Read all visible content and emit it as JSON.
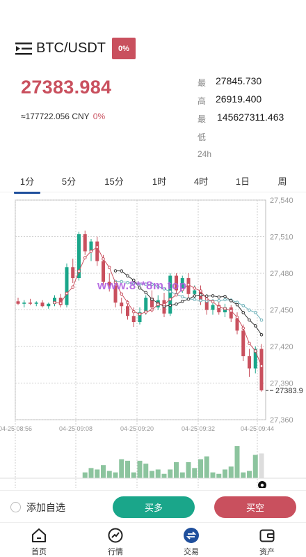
{
  "header": {
    "pair": "BTC/USDT",
    "change_badge": "0%"
  },
  "ticker": {
    "last_price": "27383.984",
    "cny_value": "≈177722.056 CNY",
    "cny_change": "0%",
    "high_label": "最高",
    "high_value": "27845.730",
    "low_label": "最低",
    "low_value": "26919.400",
    "vol_label": "24h",
    "vol_value": "145627311.463"
  },
  "period_tabs": [
    "1分",
    "5分",
    "15分",
    "1时",
    "4时",
    "1日",
    "周"
  ],
  "active_tab": 0,
  "watermark": "www.8**8m.top",
  "chart_data": {
    "type": "candlestick",
    "y_ticks": [
      "27,540",
      "27,510",
      "27,480",
      "27,450",
      "27,420",
      "27,390",
      "27,360"
    ],
    "ylim": [
      27360,
      27540
    ],
    "x_ticks": [
      "04-25 08:56",
      "04-25 09:08",
      "04-25 09:20",
      "04-25 09:32",
      "04-25 09:44"
    ],
    "last_price_label": "- 27383.9",
    "last_price": 27383.9,
    "grid": true,
    "colors": {
      "up": "#1aa68a",
      "down": "#c9505e",
      "ma1": "#c9505e",
      "ma2": "#333333",
      "ma3": "#6ab0b8"
    },
    "candles": [
      [
        27457,
        27460,
        27454,
        27455
      ],
      [
        27455,
        27458,
        27452,
        27456
      ],
      [
        27456,
        27459,
        27454,
        27455
      ],
      [
        27455,
        27457,
        27453,
        27456
      ],
      [
        27456,
        27458,
        27452,
        27453
      ],
      [
        27453,
        27456,
        27451,
        27455
      ],
      [
        27455,
        27462,
        27453,
        27460
      ],
      [
        27460,
        27463,
        27452,
        27454
      ],
      [
        27454,
        27488,
        27452,
        27485
      ],
      [
        27485,
        27492,
        27472,
        27476
      ],
      [
        27476,
        27514,
        27474,
        27512
      ],
      [
        27512,
        27515,
        27495,
        27498
      ],
      [
        27498,
        27508,
        27490,
        27506
      ],
      [
        27506,
        27510,
        27486,
        27490
      ],
      [
        27490,
        27495,
        27470,
        27473
      ],
      [
        27473,
        27480,
        27465,
        27470
      ],
      [
        27470,
        27474,
        27452,
        27456
      ],
      [
        27456,
        27460,
        27447,
        27453
      ],
      [
        27453,
        27458,
        27442,
        27445
      ],
      [
        27445,
        27452,
        27436,
        27440
      ],
      [
        27440,
        27452,
        27438,
        27448
      ],
      [
        27448,
        27462,
        27446,
        27460
      ],
      [
        27460,
        27466,
        27448,
        27452
      ],
      [
        27452,
        27462,
        27450,
        27458
      ],
      [
        27458,
        27464,
        27444,
        27447
      ],
      [
        27447,
        27480,
        27445,
        27478
      ],
      [
        27478,
        27480,
        27462,
        27466
      ],
      [
        27466,
        27478,
        27464,
        27476
      ],
      [
        27476,
        27480,
        27460,
        27463
      ],
      [
        27463,
        27470,
        27458,
        27466
      ],
      [
        27466,
        27470,
        27454,
        27457
      ],
      [
        27457,
        27462,
        27446,
        27450
      ],
      [
        27450,
        27458,
        27446,
        27454
      ],
      [
        27454,
        27458,
        27446,
        27448
      ],
      [
        27448,
        27455,
        27444,
        27452
      ],
      [
        27452,
        27454,
        27440,
        27443
      ],
      [
        27443,
        27448,
        27430,
        27433
      ],
      [
        27433,
        27438,
        27408,
        27412
      ],
      [
        27412,
        27418,
        27395,
        27402
      ],
      [
        27402,
        27420,
        27398,
        27418
      ],
      [
        27418,
        27422,
        27383,
        27384
      ]
    ],
    "volume": [
      0,
      0,
      0,
      0,
      0,
      0,
      0,
      0,
      0,
      0,
      0,
      8,
      14,
      12,
      18,
      10,
      8,
      26,
      24,
      8,
      24,
      20,
      10,
      12,
      6,
      12,
      22,
      8,
      22,
      14,
      26,
      30,
      8,
      6,
      12,
      16,
      44,
      8,
      10,
      32,
      34
    ]
  },
  "actions": {
    "favorite_label": "添加自选",
    "buy_label": "买多",
    "sell_label": "买空"
  },
  "bottom_nav": {
    "home": "首页",
    "market": "行情",
    "trade": "交易",
    "assets": "资产"
  }
}
